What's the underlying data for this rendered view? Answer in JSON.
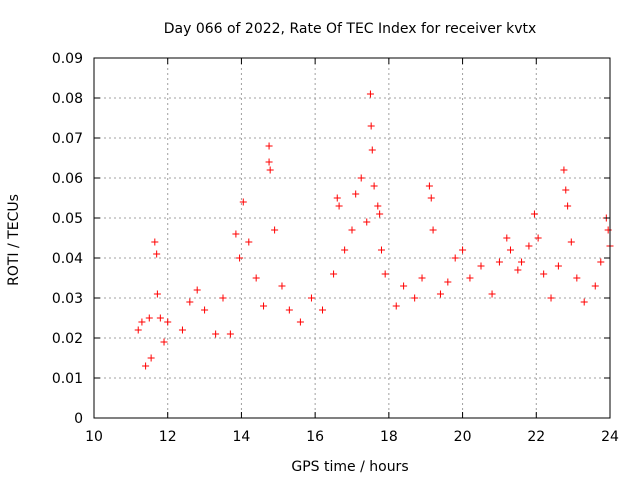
{
  "chart_data": {
    "type": "scatter",
    "title": "Day 066 of 2022, Rate Of TEC Index for receiver kvtx",
    "xlabel": "GPS time / hours",
    "ylabel": "ROTI / TECUs",
    "xlim": [
      10,
      24
    ],
    "ylim": [
      0,
      0.09
    ],
    "xticks": [
      "10",
      "12",
      "14",
      "16",
      "18",
      "20",
      "22",
      "24"
    ],
    "yticks": [
      "0",
      "0.01",
      "0.02",
      "0.03",
      "0.04",
      "0.05",
      "0.06",
      "0.07",
      "0.08",
      "0.09"
    ],
    "grid": true,
    "marker": "plus",
    "color": "#ff0000",
    "series": [
      {
        "points": [
          [
            11.2,
            0.022
          ],
          [
            11.3,
            0.024
          ],
          [
            11.4,
            0.013
          ],
          [
            11.5,
            0.025
          ],
          [
            11.55,
            0.015
          ],
          [
            11.65,
            0.044
          ],
          [
            11.7,
            0.041
          ],
          [
            11.72,
            0.031
          ],
          [
            11.8,
            0.025
          ],
          [
            11.9,
            0.019
          ],
          [
            12.0,
            0.024
          ],
          [
            12.4,
            0.022
          ],
          [
            12.6,
            0.029
          ],
          [
            12.8,
            0.032
          ],
          [
            13.0,
            0.027
          ],
          [
            13.3,
            0.021
          ],
          [
            13.5,
            0.03
          ],
          [
            13.7,
            0.021
          ],
          [
            13.85,
            0.046
          ],
          [
            13.95,
            0.04
          ],
          [
            14.05,
            0.054
          ],
          [
            14.2,
            0.044
          ],
          [
            14.4,
            0.035
          ],
          [
            14.6,
            0.028
          ],
          [
            14.75,
            0.068
          ],
          [
            14.75,
            0.064
          ],
          [
            14.78,
            0.062
          ],
          [
            14.9,
            0.047
          ],
          [
            15.1,
            0.033
          ],
          [
            15.3,
            0.027
          ],
          [
            15.6,
            0.024
          ],
          [
            15.9,
            0.03
          ],
          [
            16.2,
            0.027
          ],
          [
            16.5,
            0.036
          ],
          [
            16.6,
            0.055
          ],
          [
            16.65,
            0.053
          ],
          [
            16.8,
            0.042
          ],
          [
            17.0,
            0.047
          ],
          [
            17.1,
            0.056
          ],
          [
            17.25,
            0.06
          ],
          [
            17.4,
            0.049
          ],
          [
            17.5,
            0.081
          ],
          [
            17.52,
            0.073
          ],
          [
            17.55,
            0.067
          ],
          [
            17.6,
            0.058
          ],
          [
            17.7,
            0.053
          ],
          [
            17.75,
            0.051
          ],
          [
            17.8,
            0.042
          ],
          [
            17.9,
            0.036
          ],
          [
            18.2,
            0.028
          ],
          [
            18.4,
            0.033
          ],
          [
            18.7,
            0.03
          ],
          [
            18.9,
            0.035
          ],
          [
            19.1,
            0.058
          ],
          [
            19.15,
            0.055
          ],
          [
            19.2,
            0.047
          ],
          [
            19.4,
            0.031
          ],
          [
            19.6,
            0.034
          ],
          [
            19.8,
            0.04
          ],
          [
            20.0,
            0.042
          ],
          [
            20.2,
            0.035
          ],
          [
            20.5,
            0.038
          ],
          [
            20.8,
            0.031
          ],
          [
            21.0,
            0.039
          ],
          [
            21.2,
            0.045
          ],
          [
            21.3,
            0.042
          ],
          [
            21.5,
            0.037
          ],
          [
            21.6,
            0.039
          ],
          [
            21.8,
            0.043
          ],
          [
            21.95,
            0.051
          ],
          [
            22.05,
            0.045
          ],
          [
            22.2,
            0.036
          ],
          [
            22.4,
            0.03
          ],
          [
            22.6,
            0.038
          ],
          [
            22.75,
            0.062
          ],
          [
            22.8,
            0.057
          ],
          [
            22.85,
            0.053
          ],
          [
            22.95,
            0.044
          ],
          [
            23.1,
            0.035
          ],
          [
            23.3,
            0.029
          ],
          [
            23.6,
            0.033
          ],
          [
            23.75,
            0.039
          ],
          [
            23.9,
            0.05
          ],
          [
            23.95,
            0.047
          ],
          [
            24.0,
            0.043
          ]
        ]
      }
    ]
  }
}
